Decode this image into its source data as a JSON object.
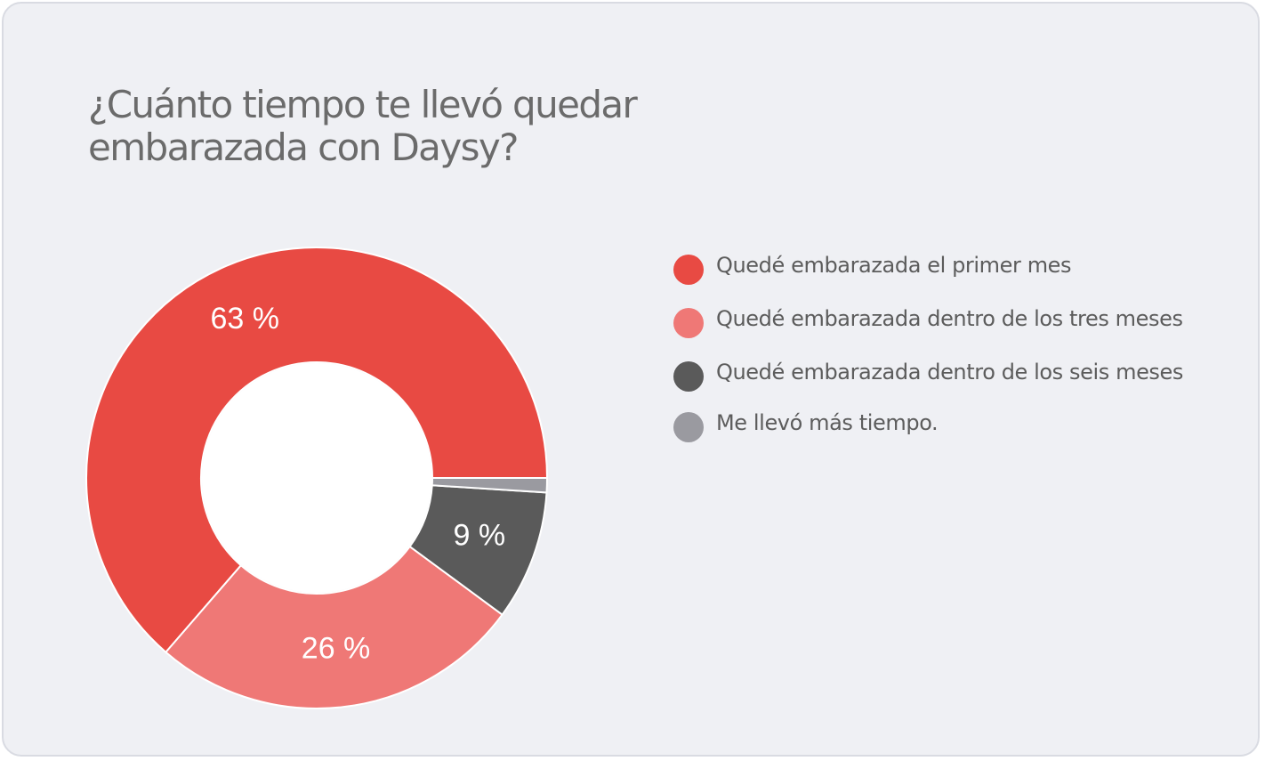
{
  "chart_data": {
    "type": "pie",
    "title": "¿Cuánto tiempo te llevó quedar embarazada con Daysy?",
    "categories": [
      "Quedé embarazada el primer mes",
      "Quedé embarazada dentro de los tres meses",
      "Quedé embarazada dentro de los seis meses",
      "Me llevó más tiempo."
    ],
    "values": [
      63,
      26,
      9,
      1
    ],
    "data_labels": [
      "63 %",
      "26 %",
      "9 %",
      ""
    ],
    "colors": [
      "#e84a43",
      "#ef7876",
      "#5a5a5a",
      "#9a9aa0"
    ],
    "legend_position": "right",
    "donut": true
  }
}
